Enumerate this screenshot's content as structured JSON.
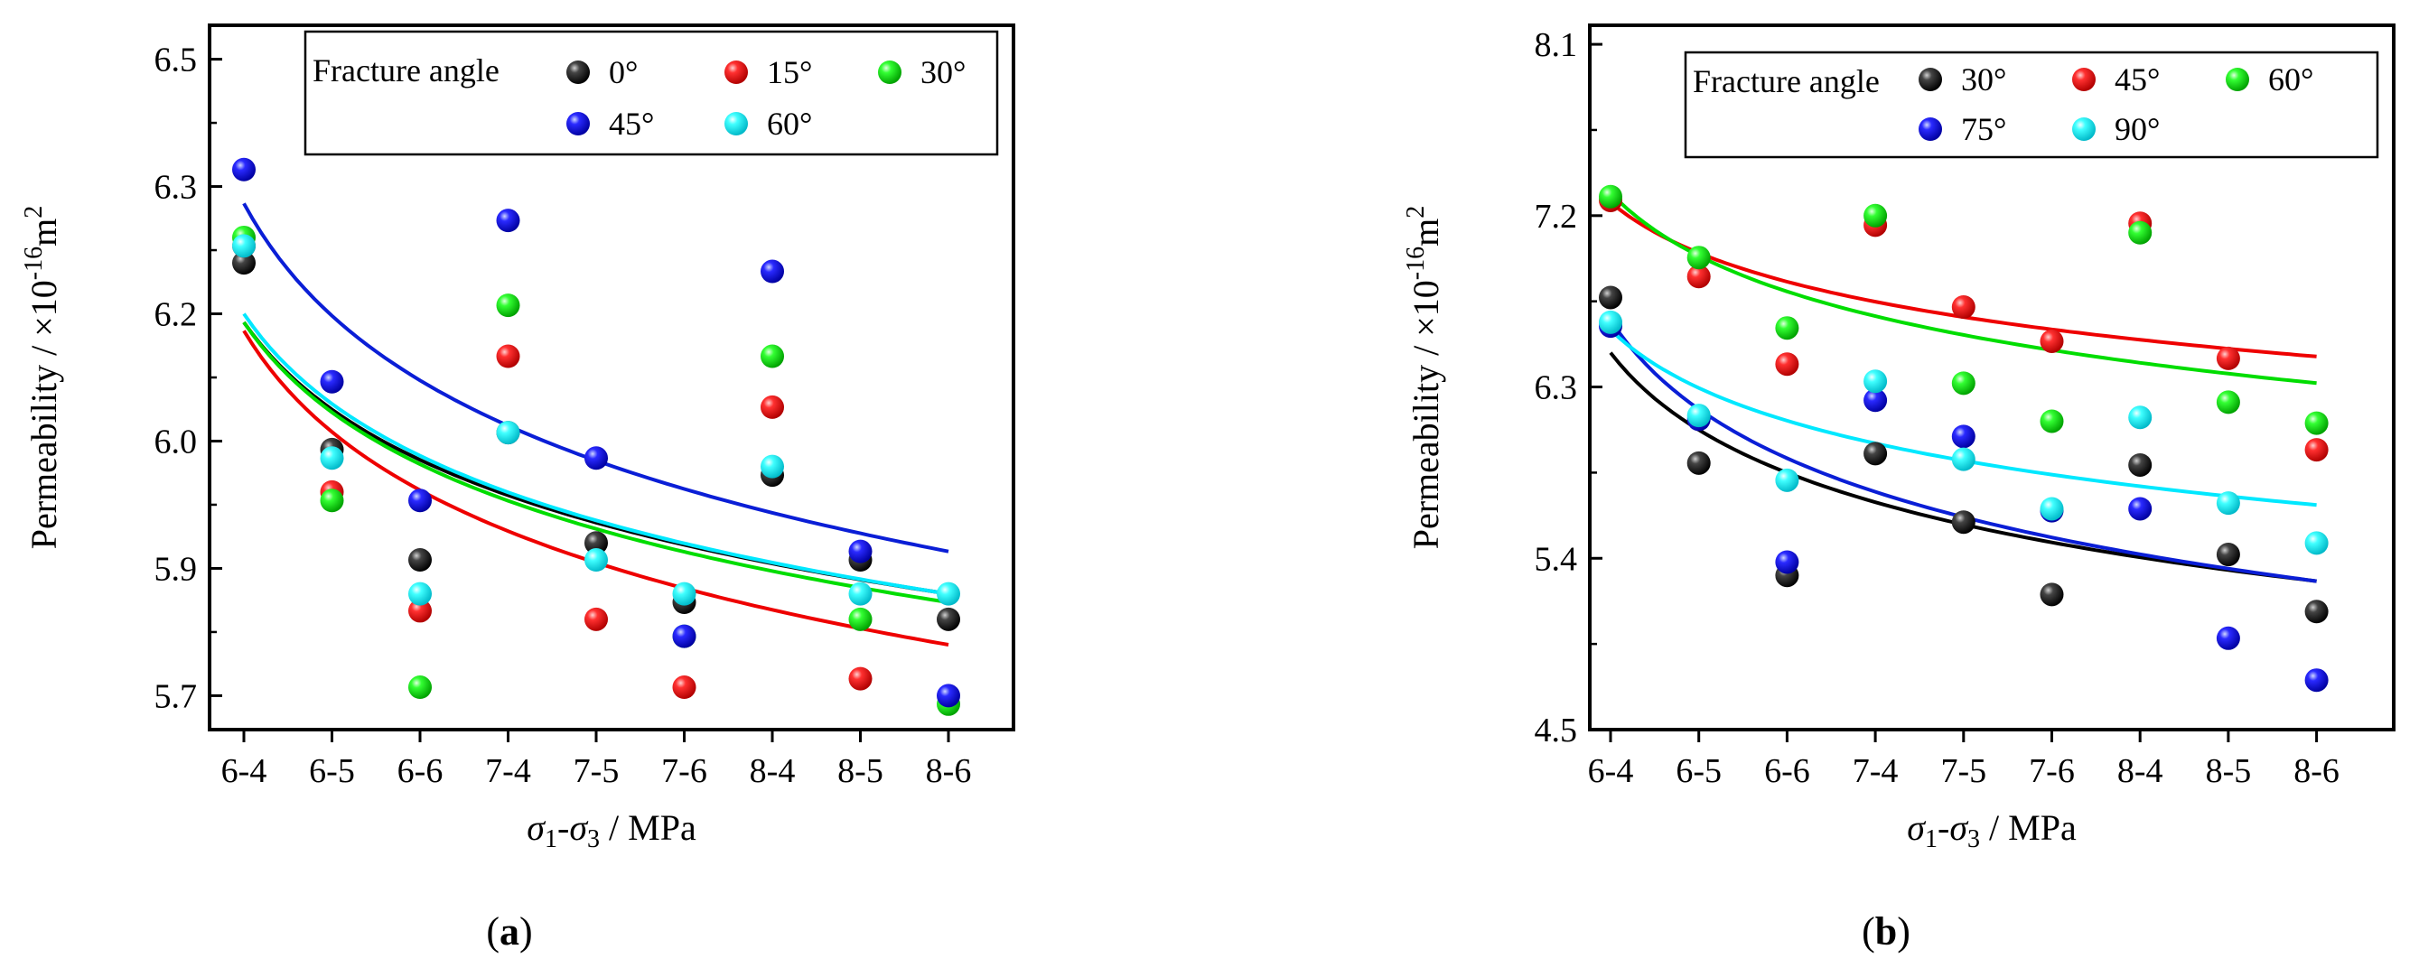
{
  "colors": {
    "black": "#000000",
    "red": "#ff0000",
    "green": "#00ee00",
    "blue": "#0000ff",
    "cyan": "#00ffff",
    "line_black": "#000000",
    "line_red": "#ee0000",
    "line_green": "#00dd00",
    "line_blue": "#0a1ed6",
    "line_cyan": "#00e8ff"
  },
  "chart_data": [
    {
      "type": "scatter",
      "panel_label": "a",
      "xlabel": "σ1-σ3 / MPa",
      "ylabel": "Permeability / ×10⁻¹⁶m²",
      "categories": [
        "6-4",
        "6-5",
        "6-6",
        "7-4",
        "7-5",
        "7-6",
        "8-4",
        "8-5",
        "8-6"
      ],
      "y_ticks": [
        "5.7",
        "5.9",
        "6.0",
        "6.2",
        "6.3",
        "6.5"
      ],
      "y_tick_values": [
        5.7,
        5.85,
        6.0,
        6.15,
        6.3,
        6.45
      ],
      "ylim": [
        5.66,
        6.49
      ],
      "legend_title": "Fracture angle",
      "series": [
        {
          "name": "0°",
          "color": "black",
          "line_color": "line_black",
          "fit": [
            6.14,
            5.82
          ],
          "values": [
            6.21,
            5.99,
            5.86,
            6.01,
            5.88,
            5.81,
            5.96,
            5.86,
            5.79
          ]
        },
        {
          "name": "15°",
          "color": "red",
          "line_color": "line_red",
          "fit": [
            6.13,
            5.76
          ],
          "values": [
            6.23,
            5.94,
            5.8,
            6.1,
            5.79,
            5.71,
            6.04,
            5.72,
            null
          ]
        },
        {
          "name": "30°",
          "color": "green",
          "line_color": "line_green",
          "fit": [
            6.14,
            5.81
          ],
          "values": [
            6.24,
            5.93,
            5.71,
            6.16,
            null,
            5.77,
            6.1,
            5.79,
            5.69
          ]
        },
        {
          "name": "45°",
          "color": "blue",
          "line_color": "line_blue",
          "fit": [
            6.28,
            5.87
          ],
          "values": [
            6.32,
            6.07,
            5.93,
            6.26,
            5.98,
            5.77,
            6.2,
            5.87,
            5.7
          ]
        },
        {
          "name": "60°",
          "color": "cyan",
          "line_color": "line_cyan",
          "fit": [
            6.15,
            5.82
          ],
          "values": [
            6.23,
            5.98,
            5.82,
            6.01,
            5.86,
            5.82,
            5.97,
            5.82,
            5.82
          ]
        }
      ]
    },
    {
      "type": "scatter",
      "panel_label": "b",
      "xlabel": "σ1-σ3 / MPa",
      "ylabel": "Permeability / ×10⁻¹⁶m²",
      "categories": [
        "6-4",
        "6-5",
        "6-6",
        "7-4",
        "7-5",
        "7-6",
        "8-4",
        "8-5",
        "8-6"
      ],
      "y_ticks": [
        "4.5",
        "5.4",
        "6.3",
        "7.2",
        "8.1"
      ],
      "y_tick_values": [
        4.5,
        5.4,
        6.3,
        7.2,
        8.1
      ],
      "ylim": [
        4.5,
        8.2
      ],
      "legend_title": "Fracture angle",
      "series": [
        {
          "name": "30°",
          "color": "black",
          "line_color": "line_black",
          "fit": [
            6.48,
            5.28
          ],
          "values": [
            6.77,
            5.9,
            5.31,
            5.95,
            5.59,
            5.21,
            5.89,
            5.42,
            5.12
          ]
        },
        {
          "name": "45°",
          "color": "red",
          "line_color": "line_red",
          "fit": [
            7.27,
            6.46
          ],
          "values": [
            7.28,
            6.88,
            6.42,
            7.15,
            6.72,
            6.54,
            7.16,
            6.45,
            5.97
          ]
        },
        {
          "name": "60°",
          "color": "green",
          "line_color": "line_green",
          "fit": [
            7.32,
            6.32
          ],
          "values": [
            7.3,
            6.98,
            6.61,
            7.2,
            6.32,
            6.12,
            7.11,
            6.22,
            6.11
          ]
        },
        {
          "name": "75°",
          "color": "blue",
          "line_color": "line_blue",
          "fit": [
            6.65,
            5.28
          ],
          "values": [
            6.62,
            6.13,
            5.38,
            6.23,
            6.04,
            5.65,
            5.66,
            4.98,
            4.76
          ]
        },
        {
          "name": "90°",
          "color": "cyan",
          "line_color": "line_cyan",
          "fit": [
            6.6,
            5.68
          ],
          "values": [
            6.64,
            6.15,
            5.81,
            6.33,
            5.92,
            5.66,
            6.14,
            5.69,
            5.48
          ]
        }
      ]
    }
  ]
}
